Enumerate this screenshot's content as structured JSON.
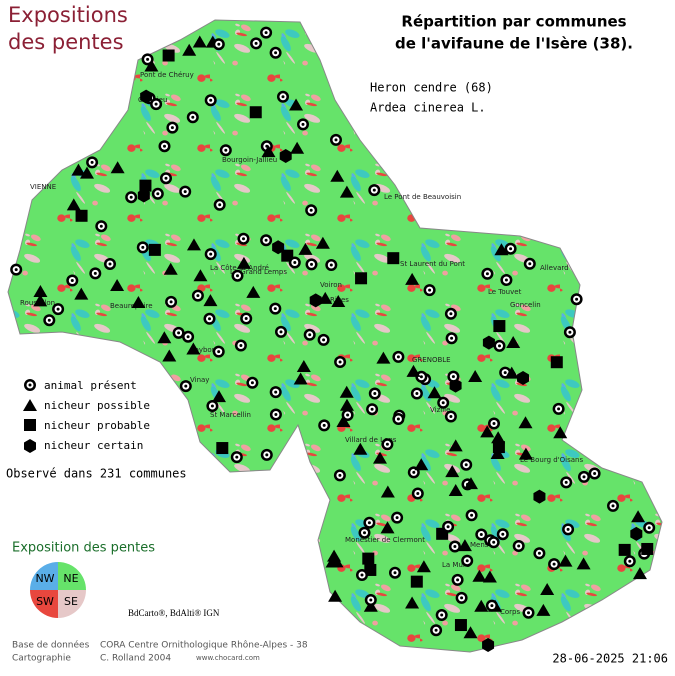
{
  "header": {
    "title": [
      "Expositions",
      "des pentes"
    ],
    "subtitle": [
      "Répartition par communes",
      "de l'avifaune de l'Isère (38)."
    ]
  },
  "species": {
    "name": "Heron cendre  (68)",
    "latin": "Ardea cinerea L."
  },
  "legend": {
    "items": [
      "animal présent",
      "nicheur possible",
      "nicheur probable",
      "nicheur certain"
    ],
    "count": "Observé dans 231 communes"
  },
  "slope_legend": {
    "title": "Exposition des pentes",
    "quadrants": [
      "NW",
      "NE",
      "SW",
      "SE"
    ]
  },
  "map": {
    "places": [
      "Pont de Chéruy",
      "Crémieu",
      "Bourgoin-Jallieu",
      "VIENNE",
      "Le Pont de Beauvoisin",
      "Voiron",
      "GRENOBLE",
      "Allevard",
      "Le Touvet",
      "Roussillon",
      "Vizille",
      "La Mure",
      "Le Bourg d'Oisans",
      "Mens",
      "Monestier de Clermont",
      "Villard de Lans",
      "St Marcellin",
      "Roybon",
      "La Côte St André",
      "Le Grand Lemps",
      "Rives",
      "St Laurent du Pont",
      "Goncelin",
      "Beaurepaire",
      "Vinay",
      "Corps"
    ],
    "copyright": "BdCarto®, BdAlti® IGN"
  },
  "footer": {
    "db_label": "Base de données",
    "db_value": "CORA Centre Ornithologique Rhône-Alpes - 38",
    "carto_label": "Cartographie",
    "carto_value": "C. Rolland 2004",
    "site": "www.chocard.com",
    "date": "28-06-2025 21:06"
  }
}
